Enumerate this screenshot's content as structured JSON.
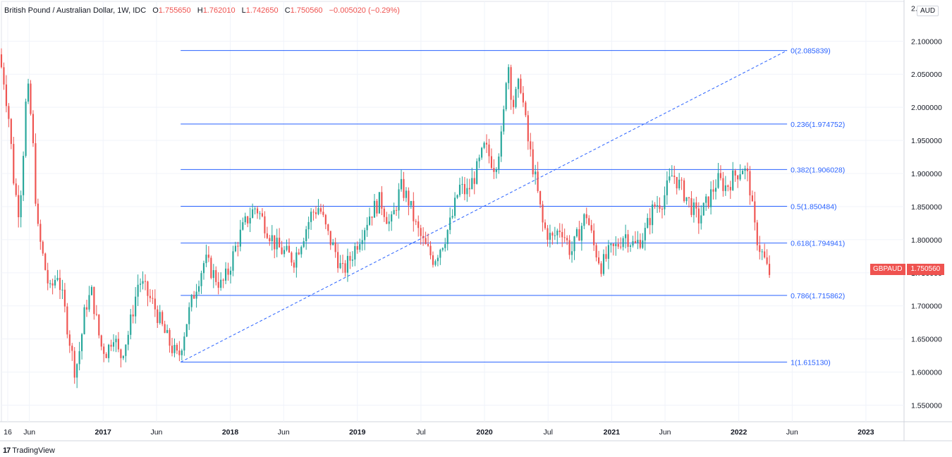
{
  "legend": {
    "symbol_full": "British Pound / Australian Dollar, 1W, IDC",
    "open_label": "O",
    "open": "1.755650",
    "high_label": "H",
    "high": "1.762010",
    "low_label": "L",
    "low": "1.742650",
    "close_label": "C",
    "close": "1.750560",
    "change": "−0.005020 (−0.29%)"
  },
  "currency": "AUD",
  "price_tag": {
    "symbol": "GBPAUD",
    "value": "1.750560"
  },
  "brand": {
    "logo": "17",
    "name": "TradingView"
  },
  "colors": {
    "up": "#26a69a",
    "down": "#ef5350",
    "fib": "#2962ff",
    "grid": "#f0f3fa",
    "axis_text": "#131722"
  },
  "chart_data": {
    "type": "candlestick",
    "title": "British Pound / Australian Dollar, 1W, IDC",
    "y_axis": {
      "ticks": [
        "1.550000",
        "1.600000",
        "1.650000",
        "1.700000",
        "1.750000",
        "1.800000",
        "1.850000",
        "1.900000",
        "1.950000",
        "2.000000",
        "2.050000",
        "2.100000"
      ],
      "tick_values": [
        1.55,
        1.6,
        1.65,
        1.7,
        1.75,
        1.8,
        1.85,
        1.9,
        1.95,
        2.0,
        2.05,
        2.1
      ],
      "top_partial_label": "2.",
      "range": [
        1.525,
        2.16
      ]
    },
    "x_axis": {
      "labels": [
        {
          "text": "16",
          "bold": false,
          "t": 2016.25
        },
        {
          "text": "Jun",
          "bold": false,
          "t": 2016.42
        },
        {
          "text": "2017",
          "bold": true,
          "t": 2017.0
        },
        {
          "text": "Jun",
          "bold": false,
          "t": 2017.42
        },
        {
          "text": "2018",
          "bold": true,
          "t": 2018.0
        },
        {
          "text": "Jun",
          "bold": false,
          "t": 2018.42
        },
        {
          "text": "2019",
          "bold": true,
          "t": 2019.0
        },
        {
          "text": "Jul",
          "bold": false,
          "t": 2019.5
        },
        {
          "text": "2020",
          "bold": true,
          "t": 2020.0
        },
        {
          "text": "Jul",
          "bold": false,
          "t": 2020.5
        },
        {
          "text": "2021",
          "bold": true,
          "t": 2021.0
        },
        {
          "text": "Jun",
          "bold": false,
          "t": 2021.42
        },
        {
          "text": "2022",
          "bold": true,
          "t": 2022.0
        },
        {
          "text": "Jun",
          "bold": false,
          "t": 2022.42
        },
        {
          "text": "2023",
          "bold": true,
          "t": 2023.0
        }
      ],
      "range": [
        2016.2,
        2023.3
      ]
    },
    "fibonacci": {
      "start": {
        "t": 2017.61,
        "price": 1.61513
      },
      "end": {
        "t": 2022.38,
        "price": 2.085839
      },
      "line_from_t": 2017.61,
      "line_to_t": 2022.38,
      "levels": [
        {
          "label": "0(2.085839)",
          "value": 2.085839
        },
        {
          "label": "0.236(1.974752)",
          "value": 1.974752
        },
        {
          "label": "0.382(1.906028)",
          "value": 1.906028
        },
        {
          "label": "0.5(1.850484)",
          "value": 1.850484
        },
        {
          "label": "0.618(1.794941)",
          "value": 1.794941
        },
        {
          "label": "0.786(1.715862)",
          "value": 1.715862
        },
        {
          "label": "1(1.615130)",
          "value": 1.61513
        }
      ]
    },
    "price_path": [
      [
        2016.2,
        2.08
      ],
      [
        2016.24,
        2.04
      ],
      [
        2016.28,
        1.98
      ],
      [
        2016.32,
        1.88
      ],
      [
        2016.36,
        1.84
      ],
      [
        2016.4,
        1.96
      ],
      [
        2016.42,
        2.04
      ],
      [
        2016.46,
        1.97
      ],
      [
        2016.5,
        1.82
      ],
      [
        2016.55,
        1.77
      ],
      [
        2016.6,
        1.72
      ],
      [
        2016.66,
        1.75
      ],
      [
        2016.72,
        1.69
      ],
      [
        2016.78,
        1.62
      ],
      [
        2016.8,
        1.6
      ],
      [
        2016.84,
        1.64
      ],
      [
        2016.88,
        1.7
      ],
      [
        2016.93,
        1.72
      ],
      [
        2017.0,
        1.64
      ],
      [
        2017.05,
        1.63
      ],
      [
        2017.1,
        1.66
      ],
      [
        2017.15,
        1.62
      ],
      [
        2017.22,
        1.66
      ],
      [
        2017.3,
        1.74
      ],
      [
        2017.36,
        1.72
      ],
      [
        2017.42,
        1.7
      ],
      [
        2017.5,
        1.66
      ],
      [
        2017.55,
        1.64
      ],
      [
        2017.61,
        1.62
      ],
      [
        2017.68,
        1.68
      ],
      [
        2017.75,
        1.73
      ],
      [
        2017.82,
        1.77
      ],
      [
        2017.88,
        1.75
      ],
      [
        2017.95,
        1.73
      ],
      [
        2018.0,
        1.75
      ],
      [
        2018.08,
        1.8
      ],
      [
        2018.15,
        1.83
      ],
      [
        2018.22,
        1.85
      ],
      [
        2018.3,
        1.82
      ],
      [
        2018.38,
        1.79
      ],
      [
        2018.45,
        1.78
      ],
      [
        2018.52,
        1.77
      ],
      [
        2018.58,
        1.8
      ],
      [
        2018.66,
        1.84
      ],
      [
        2018.72,
        1.85
      ],
      [
        2018.78,
        1.81
      ],
      [
        2018.85,
        1.78
      ],
      [
        2018.9,
        1.75
      ],
      [
        2018.96,
        1.77
      ],
      [
        2019.05,
        1.81
      ],
      [
        2019.12,
        1.84
      ],
      [
        2019.2,
        1.86
      ],
      [
        2019.28,
        1.82
      ],
      [
        2019.36,
        1.88
      ],
      [
        2019.42,
        1.86
      ],
      [
        2019.48,
        1.82
      ],
      [
        2019.55,
        1.79
      ],
      [
        2019.62,
        1.77
      ],
      [
        2019.7,
        1.8
      ],
      [
        2019.76,
        1.83
      ],
      [
        2019.82,
        1.88
      ],
      [
        2019.88,
        1.87
      ],
      [
        2019.95,
        1.9
      ],
      [
        2020.02,
        1.94
      ],
      [
        2020.1,
        1.91
      ],
      [
        2020.16,
        1.96
      ],
      [
        2020.2,
        2.08
      ],
      [
        2020.24,
        2.0
      ],
      [
        2020.3,
        2.04
      ],
      [
        2020.36,
        1.95
      ],
      [
        2020.42,
        1.89
      ],
      [
        2020.48,
        1.82
      ],
      [
        2020.55,
        1.8
      ],
      [
        2020.62,
        1.82
      ],
      [
        2020.7,
        1.78
      ],
      [
        2020.76,
        1.81
      ],
      [
        2020.82,
        1.84
      ],
      [
        2020.88,
        1.79
      ],
      [
        2020.94,
        1.76
      ],
      [
        2021.0,
        1.78
      ],
      [
        2021.06,
        1.79
      ],
      [
        2021.12,
        1.81
      ],
      [
        2021.2,
        1.79
      ],
      [
        2021.28,
        1.81
      ],
      [
        2021.35,
        1.85
      ],
      [
        2021.42,
        1.86
      ],
      [
        2021.5,
        1.9
      ],
      [
        2021.56,
        1.88
      ],
      [
        2021.62,
        1.86
      ],
      [
        2021.7,
        1.83
      ],
      [
        2021.78,
        1.86
      ],
      [
        2021.85,
        1.89
      ],
      [
        2021.92,
        1.88
      ],
      [
        2022.0,
        1.9
      ],
      [
        2022.05,
        1.91
      ],
      [
        2022.1,
        1.89
      ],
      [
        2022.14,
        1.82
      ],
      [
        2022.18,
        1.79
      ],
      [
        2022.22,
        1.77
      ],
      [
        2022.25,
        1.75
      ]
    ]
  }
}
